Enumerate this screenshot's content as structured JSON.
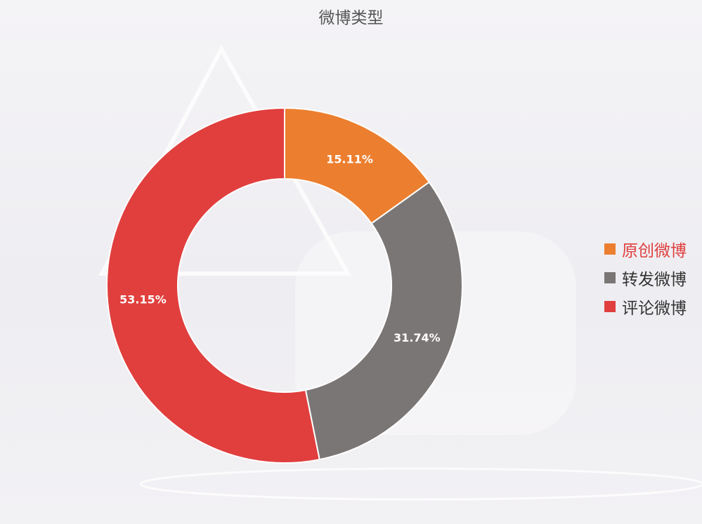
{
  "chart_data": {
    "type": "pie",
    "title": "微博类型",
    "categories": [
      "原创微博",
      "转发微博",
      "评论微博"
    ],
    "values": [
      15.11,
      31.74,
      53.15
    ],
    "labels": [
      "15.11%",
      "31.74%",
      "53.15%"
    ],
    "colors": [
      "#ec7f2f",
      "#7a7675",
      "#e03f3e"
    ],
    "legend_position": "right",
    "legend_highlight_color": "#e03f3e",
    "donut": true
  }
}
